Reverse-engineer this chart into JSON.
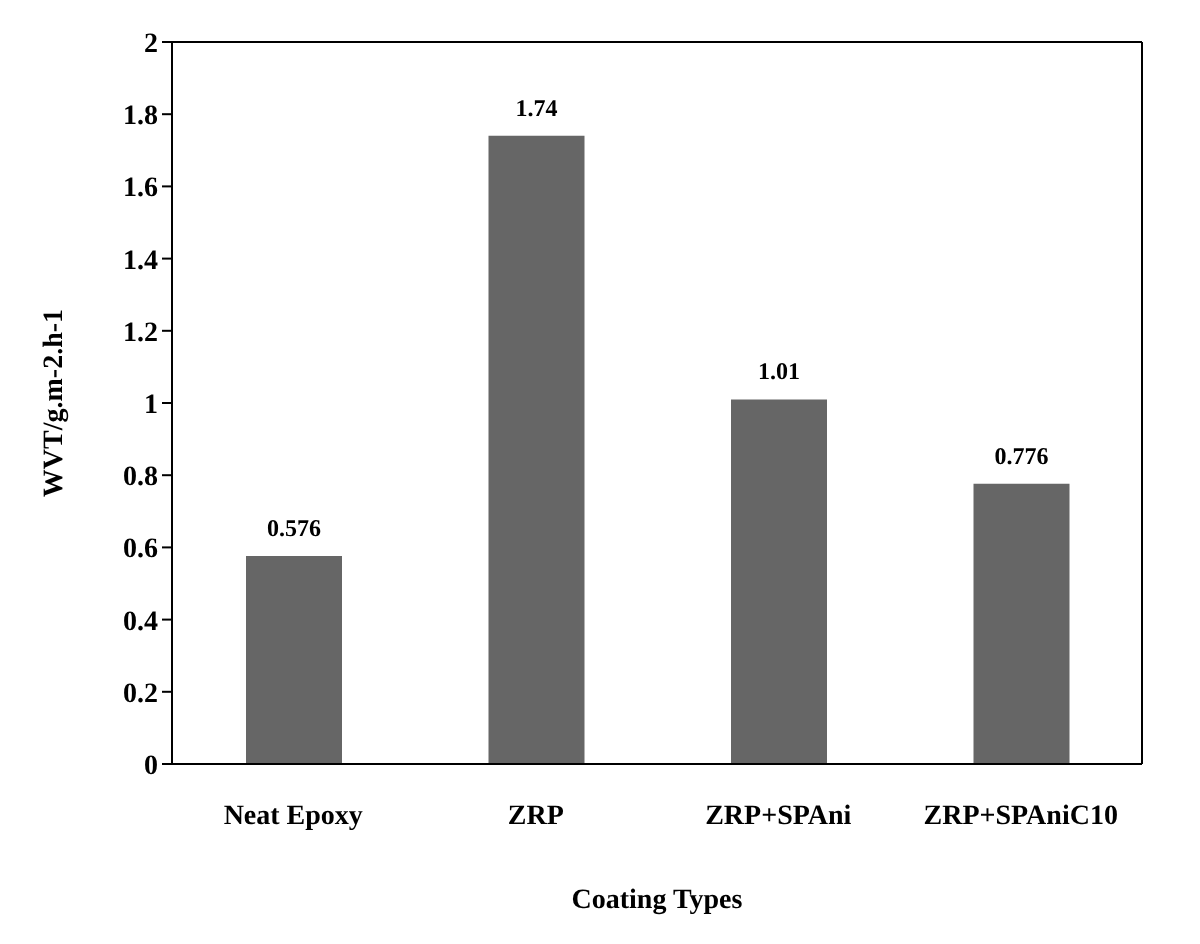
{
  "chart_data": {
    "type": "bar",
    "xlabel": "Coating Types",
    "ylabel": "WVT/g.m-2.h-1",
    "categories": [
      "Neat Epoxy",
      "ZRP",
      "ZRP+SPAni",
      "ZRP+SPAniC10"
    ],
    "values": [
      0.576,
      1.74,
      1.01,
      0.776
    ],
    "color": "#666666",
    "ylim": [
      0,
      2
    ],
    "yticks": [
      0,
      0.2,
      0.4,
      0.6,
      0.8,
      1,
      1.2,
      1.4,
      1.6,
      1.8,
      2
    ],
    "data_labels": true
  }
}
